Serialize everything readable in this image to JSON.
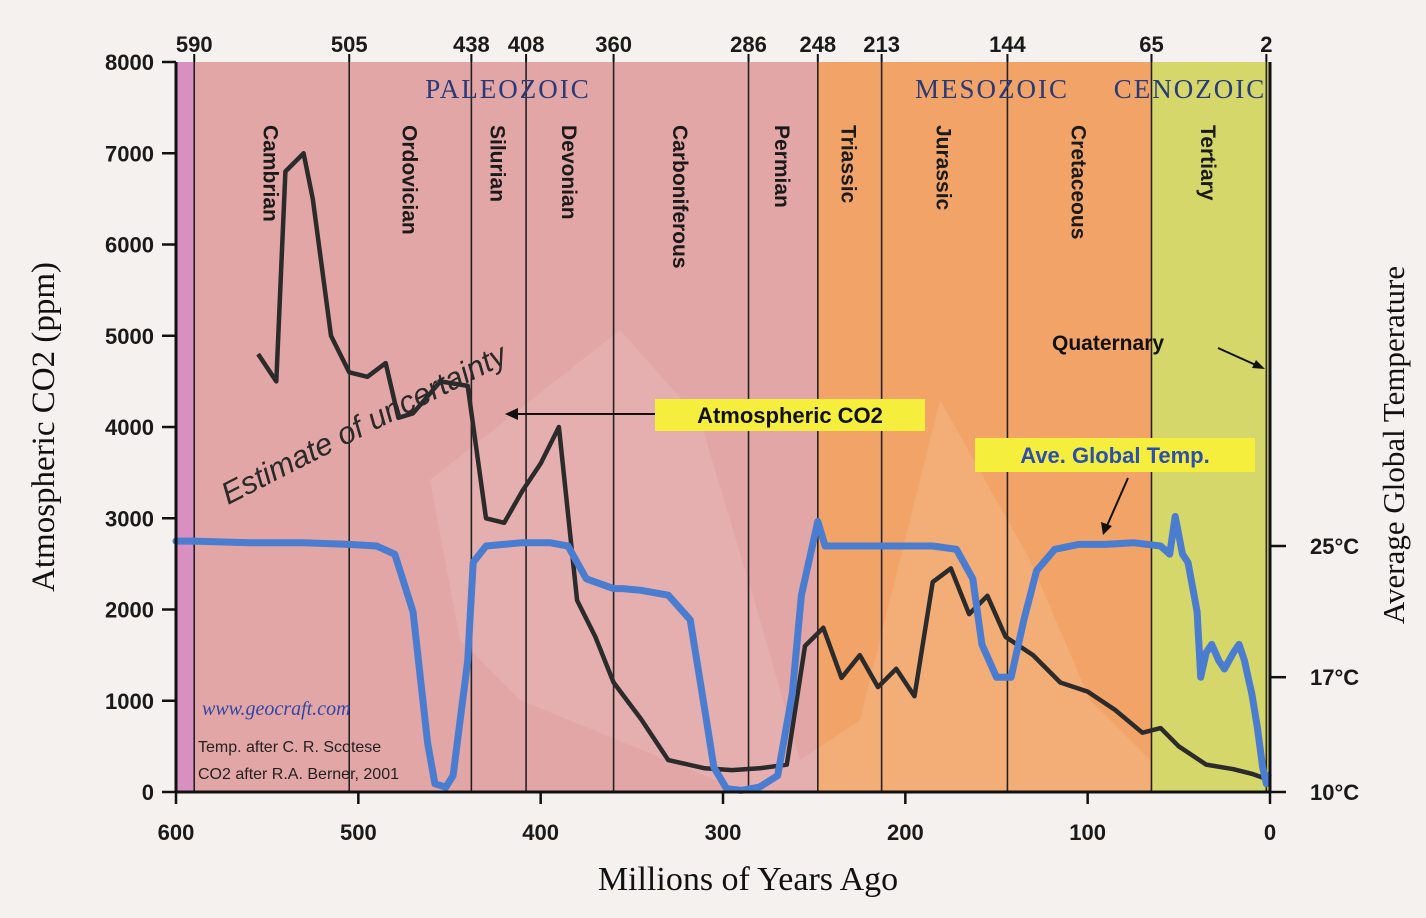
{
  "chart_data": {
    "type": "line",
    "title": "",
    "xlabel": "Millions of Years Ago",
    "ylabel": "Atmospheric CO2 (ppm)",
    "ylabel_right": "Average Global Temperature",
    "xlim": [
      600,
      0
    ],
    "ylim": [
      0,
      8000
    ],
    "x_ticks": [
      600,
      500,
      400,
      300,
      200,
      100,
      0
    ],
    "y_ticks": [
      0,
      1000,
      2000,
      3000,
      4000,
      5000,
      6000,
      7000,
      8000
    ],
    "temp_axis": [
      {
        "label": "25°C",
        "value": 25
      },
      {
        "label": "17°C",
        "value": 17
      },
      {
        "label": "10°C",
        "value": 10
      }
    ],
    "top_ticks": [
      {
        "label": "590",
        "x": 590
      },
      {
        "label": "505",
        "x": 505
      },
      {
        "label": "438",
        "x": 438
      },
      {
        "label": "408",
        "x": 408
      },
      {
        "label": "360",
        "x": 360
      },
      {
        "label": "286",
        "x": 286
      },
      {
        "label": "248",
        "x": 248
      },
      {
        "label": "213",
        "x": 213
      },
      {
        "label": "144",
        "x": 144
      },
      {
        "label": "65",
        "x": 65
      },
      {
        "label": "2",
        "x": 2
      }
    ],
    "eras": [
      {
        "name": "PALEOZOIC",
        "start": 600,
        "end": 248,
        "color": "#e3a6a6"
      },
      {
        "name": "MESOZOIC",
        "start": 248,
        "end": 65,
        "color": "#f2a468"
      },
      {
        "name": "CENOZOIC",
        "start": 65,
        "end": 0,
        "color": "#d5d76a"
      }
    ],
    "periods": [
      {
        "name": "Cambrian",
        "start": 590,
        "end": 505
      },
      {
        "name": "Ordovician",
        "start": 505,
        "end": 438
      },
      {
        "name": "Silurian",
        "start": 438,
        "end": 408
      },
      {
        "name": "Devonian",
        "start": 408,
        "end": 360
      },
      {
        "name": "Carboniferous",
        "start": 360,
        "end": 286
      },
      {
        "name": "Permian",
        "start": 286,
        "end": 248
      },
      {
        "name": "Triassic",
        "start": 248,
        "end": 213
      },
      {
        "name": "Jurassic",
        "start": 213,
        "end": 144
      },
      {
        "name": "Cretaceous",
        "start": 144,
        "end": 65
      },
      {
        "name": "Tertiary",
        "start": 65,
        "end": 2
      }
    ],
    "series": [
      {
        "name": "Atmospheric CO2",
        "color": "#2b2b2b",
        "x": [
          555,
          545,
          540,
          530,
          525,
          515,
          505,
          495,
          485,
          478,
          470,
          455,
          440,
          430,
          420,
          410,
          400,
          390,
          380,
          370,
          360,
          345,
          330,
          310,
          295,
          280,
          265,
          255,
          245,
          235,
          225,
          215,
          205,
          195,
          185,
          175,
          165,
          155,
          145,
          130,
          115,
          100,
          85,
          70,
          60,
          50,
          35,
          20,
          10,
          3
        ],
        "y": [
          4800,
          4500,
          6800,
          7000,
          6500,
          5000,
          4600,
          4550,
          4700,
          4100,
          4150,
          4500,
          4450,
          3000,
          2950,
          3300,
          3600,
          4000,
          2100,
          1700,
          1200,
          800,
          350,
          260,
          240,
          260,
          300,
          1600,
          1800,
          1250,
          1500,
          1150,
          1350,
          1050,
          2300,
          2450,
          1950,
          2150,
          1700,
          1500,
          1200,
          1100,
          900,
          650,
          700,
          500,
          300,
          250,
          200,
          150
        ]
      },
      {
        "name": "Ave. Global Temp.",
        "color": "#4a7ccf",
        "x": [
          600,
          590,
          560,
          530,
          505,
          490,
          480,
          470,
          462,
          458,
          452,
          448,
          440,
          437,
          430,
          410,
          395,
          385,
          375,
          360,
          355,
          345,
          330,
          318,
          310,
          305,
          298,
          290,
          280,
          270,
          262,
          257,
          253,
          248,
          244,
          232,
          218,
          200,
          185,
          172,
          163,
          158,
          150,
          142,
          135,
          128,
          118,
          105,
          90,
          75,
          60,
          55,
          52,
          48,
          45,
          40,
          38,
          35,
          32,
          28,
          25,
          20,
          17,
          14,
          12,
          10,
          7,
          4,
          2,
          1
        ],
        "y": [
          25.3,
          25.3,
          25.2,
          25.2,
          25.1,
          25.0,
          24.5,
          21.0,
          13.0,
          10.5,
          10.3,
          11.0,
          18.0,
          24.0,
          25.0,
          25.2,
          25.2,
          25.0,
          23.0,
          22.4,
          22.4,
          22.3,
          22.0,
          20.5,
          15.0,
          11.5,
          10.2,
          10.1,
          10.3,
          11.0,
          16.0,
          22.0,
          24.0,
          26.5,
          25.0,
          25.0,
          25.0,
          25.0,
          25.0,
          24.8,
          23.0,
          19.0,
          17.0,
          17.0,
          20.5,
          23.5,
          24.8,
          25.1,
          25.1,
          25.2,
          25.0,
          24.5,
          26.8,
          24.5,
          24.0,
          21.0,
          17.0,
          18.5,
          19.0,
          18.0,
          17.5,
          18.5,
          19.0,
          18.0,
          17.0,
          16.0,
          14.0,
          11.5,
          10.5,
          11.0
        ]
      }
    ],
    "annotations": [
      {
        "text": "Estimate of uncertainty",
        "style": "italic-rotated"
      },
      {
        "text": "Atmospheric CO2",
        "style": "yellow-callout"
      },
      {
        "text": "Ave. Global Temp.",
        "style": "yellow-callout"
      },
      {
        "text": "Quaternary",
        "style": "label"
      },
      {
        "text": "www.geocraft.com",
        "style": "credit-link"
      },
      {
        "text": "Temp. after C. R. Scotese",
        "style": "credit"
      },
      {
        "text": "CO2 after R.A. Berner, 2001",
        "style": "credit"
      }
    ],
    "grid": false,
    "legend": "none"
  }
}
